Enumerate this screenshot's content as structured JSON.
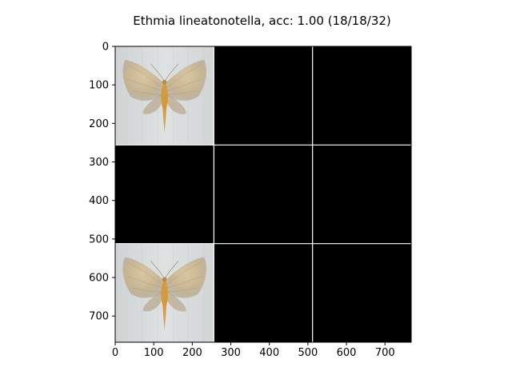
{
  "figure": {
    "title": "Ethmia lineatonotella, acc: 1.00 (18/18/32)"
  },
  "chart_data": {
    "type": "image_grid",
    "title": "Ethmia lineatonotella, acc: 1.00 (18/18/32)",
    "xlim": [
      0,
      768
    ],
    "ylim": [
      768,
      0
    ],
    "xticks": [
      0,
      100,
      200,
      300,
      400,
      500,
      600,
      700
    ],
    "yticks": [
      0,
      100,
      200,
      300,
      400,
      500,
      600,
      700
    ],
    "grid": {
      "rows": 3,
      "cols": 3,
      "tile_size": 256
    },
    "tiles": [
      {
        "row": 0,
        "col": 0,
        "content": "moth-photo"
      },
      {
        "row": 0,
        "col": 1,
        "content": "black"
      },
      {
        "row": 0,
        "col": 2,
        "content": "black"
      },
      {
        "row": 1,
        "col": 0,
        "content": "black"
      },
      {
        "row": 1,
        "col": 1,
        "content": "black"
      },
      {
        "row": 1,
        "col": 2,
        "content": "black"
      },
      {
        "row": 2,
        "col": 0,
        "content": "moth-photo"
      },
      {
        "row": 2,
        "col": 1,
        "content": "black"
      },
      {
        "row": 2,
        "col": 2,
        "content": "black"
      }
    ],
    "colors": {
      "black_tile": "#000000",
      "tile_border": "#ffffff",
      "photo_background": "#d9dcdc",
      "moth_wing": "#c7b38f",
      "moth_body": "#d49a3e"
    }
  }
}
